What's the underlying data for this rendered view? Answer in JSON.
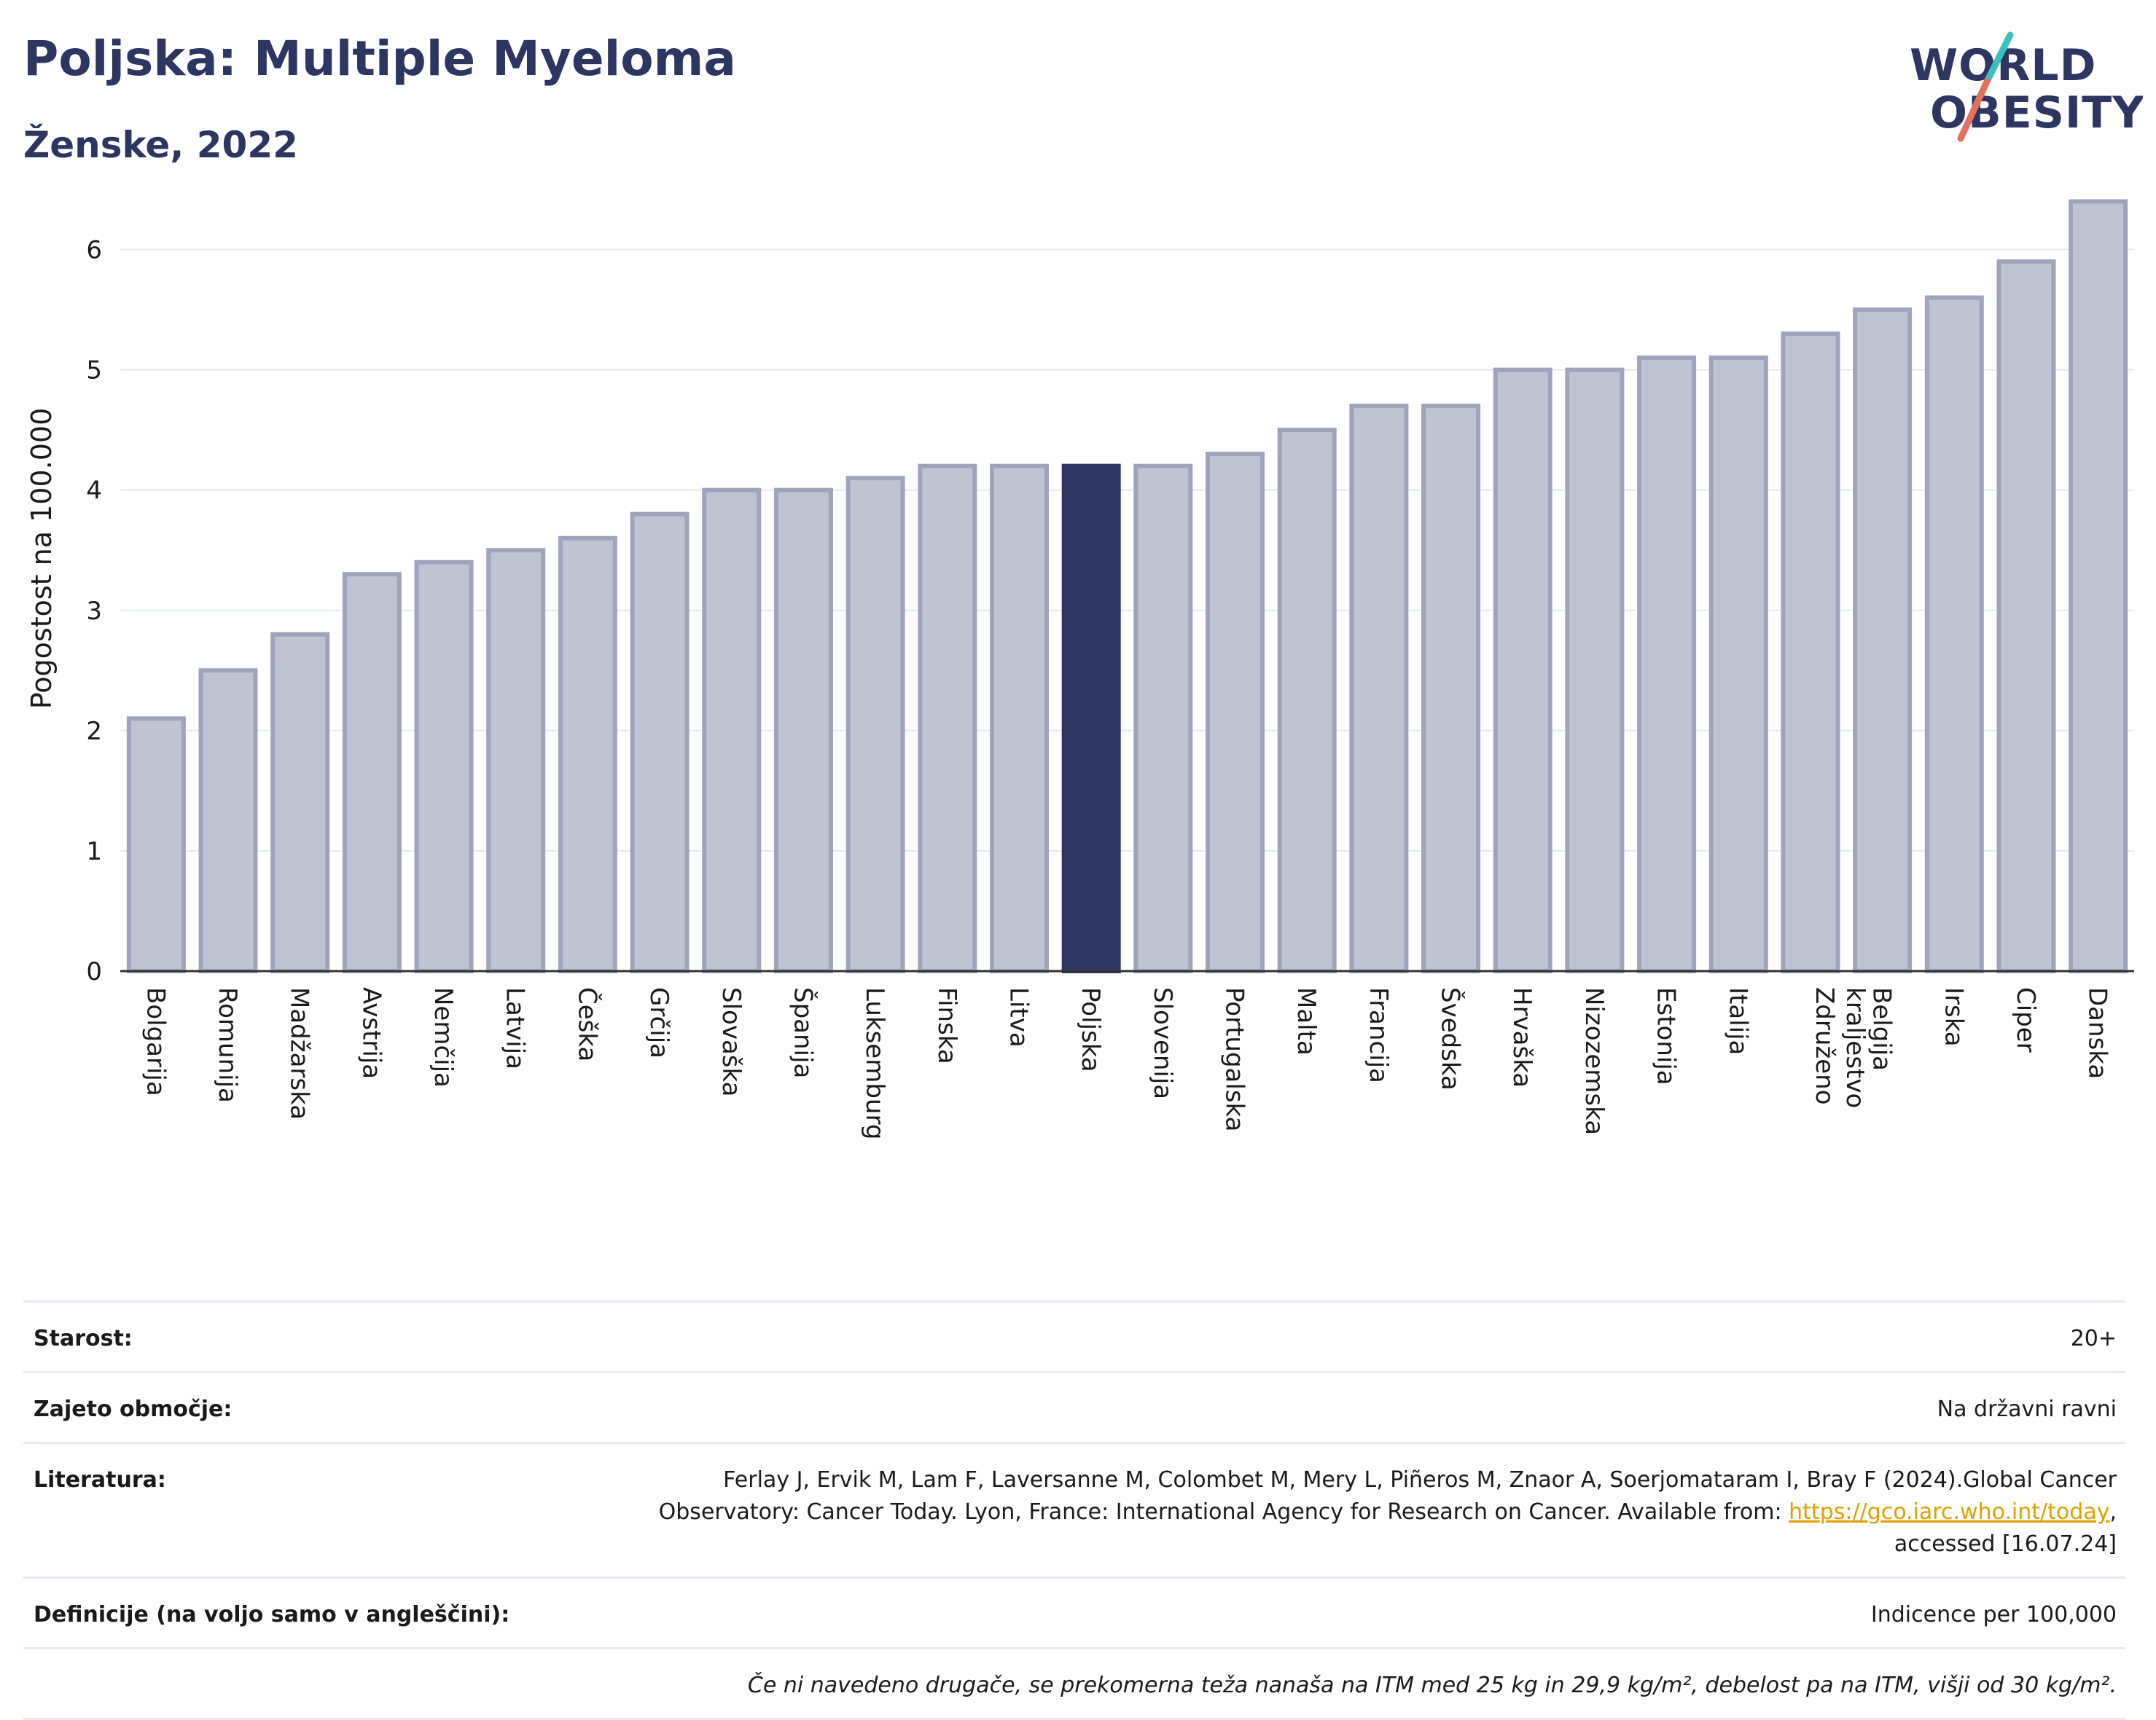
{
  "header": {
    "title": "Poljska: Multiple Myeloma",
    "subtitle": "Ženske, 2022"
  },
  "logo": {
    "line1": "WORLD",
    "line2": "OBESITY"
  },
  "chart_data": {
    "type": "bar",
    "title": "Poljska: Multiple Myeloma",
    "subtitle": "Ženske, 2022",
    "ylabel": "Pogostost na 100.000",
    "xlabel": "",
    "ylim": [
      0,
      6.5
    ],
    "yticks": [
      0,
      1,
      2,
      3,
      4,
      5,
      6
    ],
    "grid": true,
    "highlight": "Poljska",
    "categories": [
      "Bolgarija",
      "Romunija",
      "Madžarska",
      "Avstrija",
      "Nemčija",
      "Latvija",
      "Češka",
      "Grčija",
      "Slovaška",
      "Španija",
      "Luksemburg",
      "Finska",
      "Litva",
      "Poljska",
      "Slovenija",
      "Portugalska",
      "Malta",
      "Francija",
      "Švedska",
      "Hrvaška",
      "Nizozemska",
      "Estonija",
      "Italija",
      "Združeno kraljestvo",
      "Belgija",
      "Irska",
      "Ciper",
      "Danska"
    ],
    "values": [
      2.1,
      2.5,
      2.8,
      3.3,
      3.4,
      3.5,
      3.6,
      3.8,
      4.0,
      4.0,
      4.1,
      4.2,
      4.2,
      4.2,
      4.2,
      4.3,
      4.5,
      4.7,
      4.7,
      5.0,
      5.0,
      5.1,
      5.1,
      5.3,
      5.5,
      5.6,
      5.9,
      6.4
    ],
    "colors": {
      "bar": "#c0c3d1",
      "bar_stroke": "#9fa4bc",
      "highlight": "#2d3561",
      "grid": "#e6e8f0",
      "axis": "#333333"
    }
  },
  "info": {
    "age_label": "Starost:",
    "age_value": "20+",
    "area_label": "Zajeto območje:",
    "area_value": "Na državni ravni",
    "lit_label": "Literatura:",
    "lit_text": "Ferlay J, Ervik M, Lam F, Laversanne M, Colombet M, Mery L, Piñeros M, Znaor A, Soerjomataram I, Bray F (2024).Global Cancer Observatory: Cancer Today. Lyon, France: International Agency for Research on Cancer. Available from: ",
    "lit_link": "https://gco.iarc.who.int/today",
    "lit_tail": ", accessed [16.07.24]",
    "def_label": "Definicije (na voljo samo v angleščini):",
    "def_value": "Indicence per 100,000",
    "note": "Če ni navedeno drugače, se prekomerna teža nanaša na ITM med 25 kg in 29,9 kg/m², debelost pa na ITM, višji od 30 kg/m²."
  }
}
